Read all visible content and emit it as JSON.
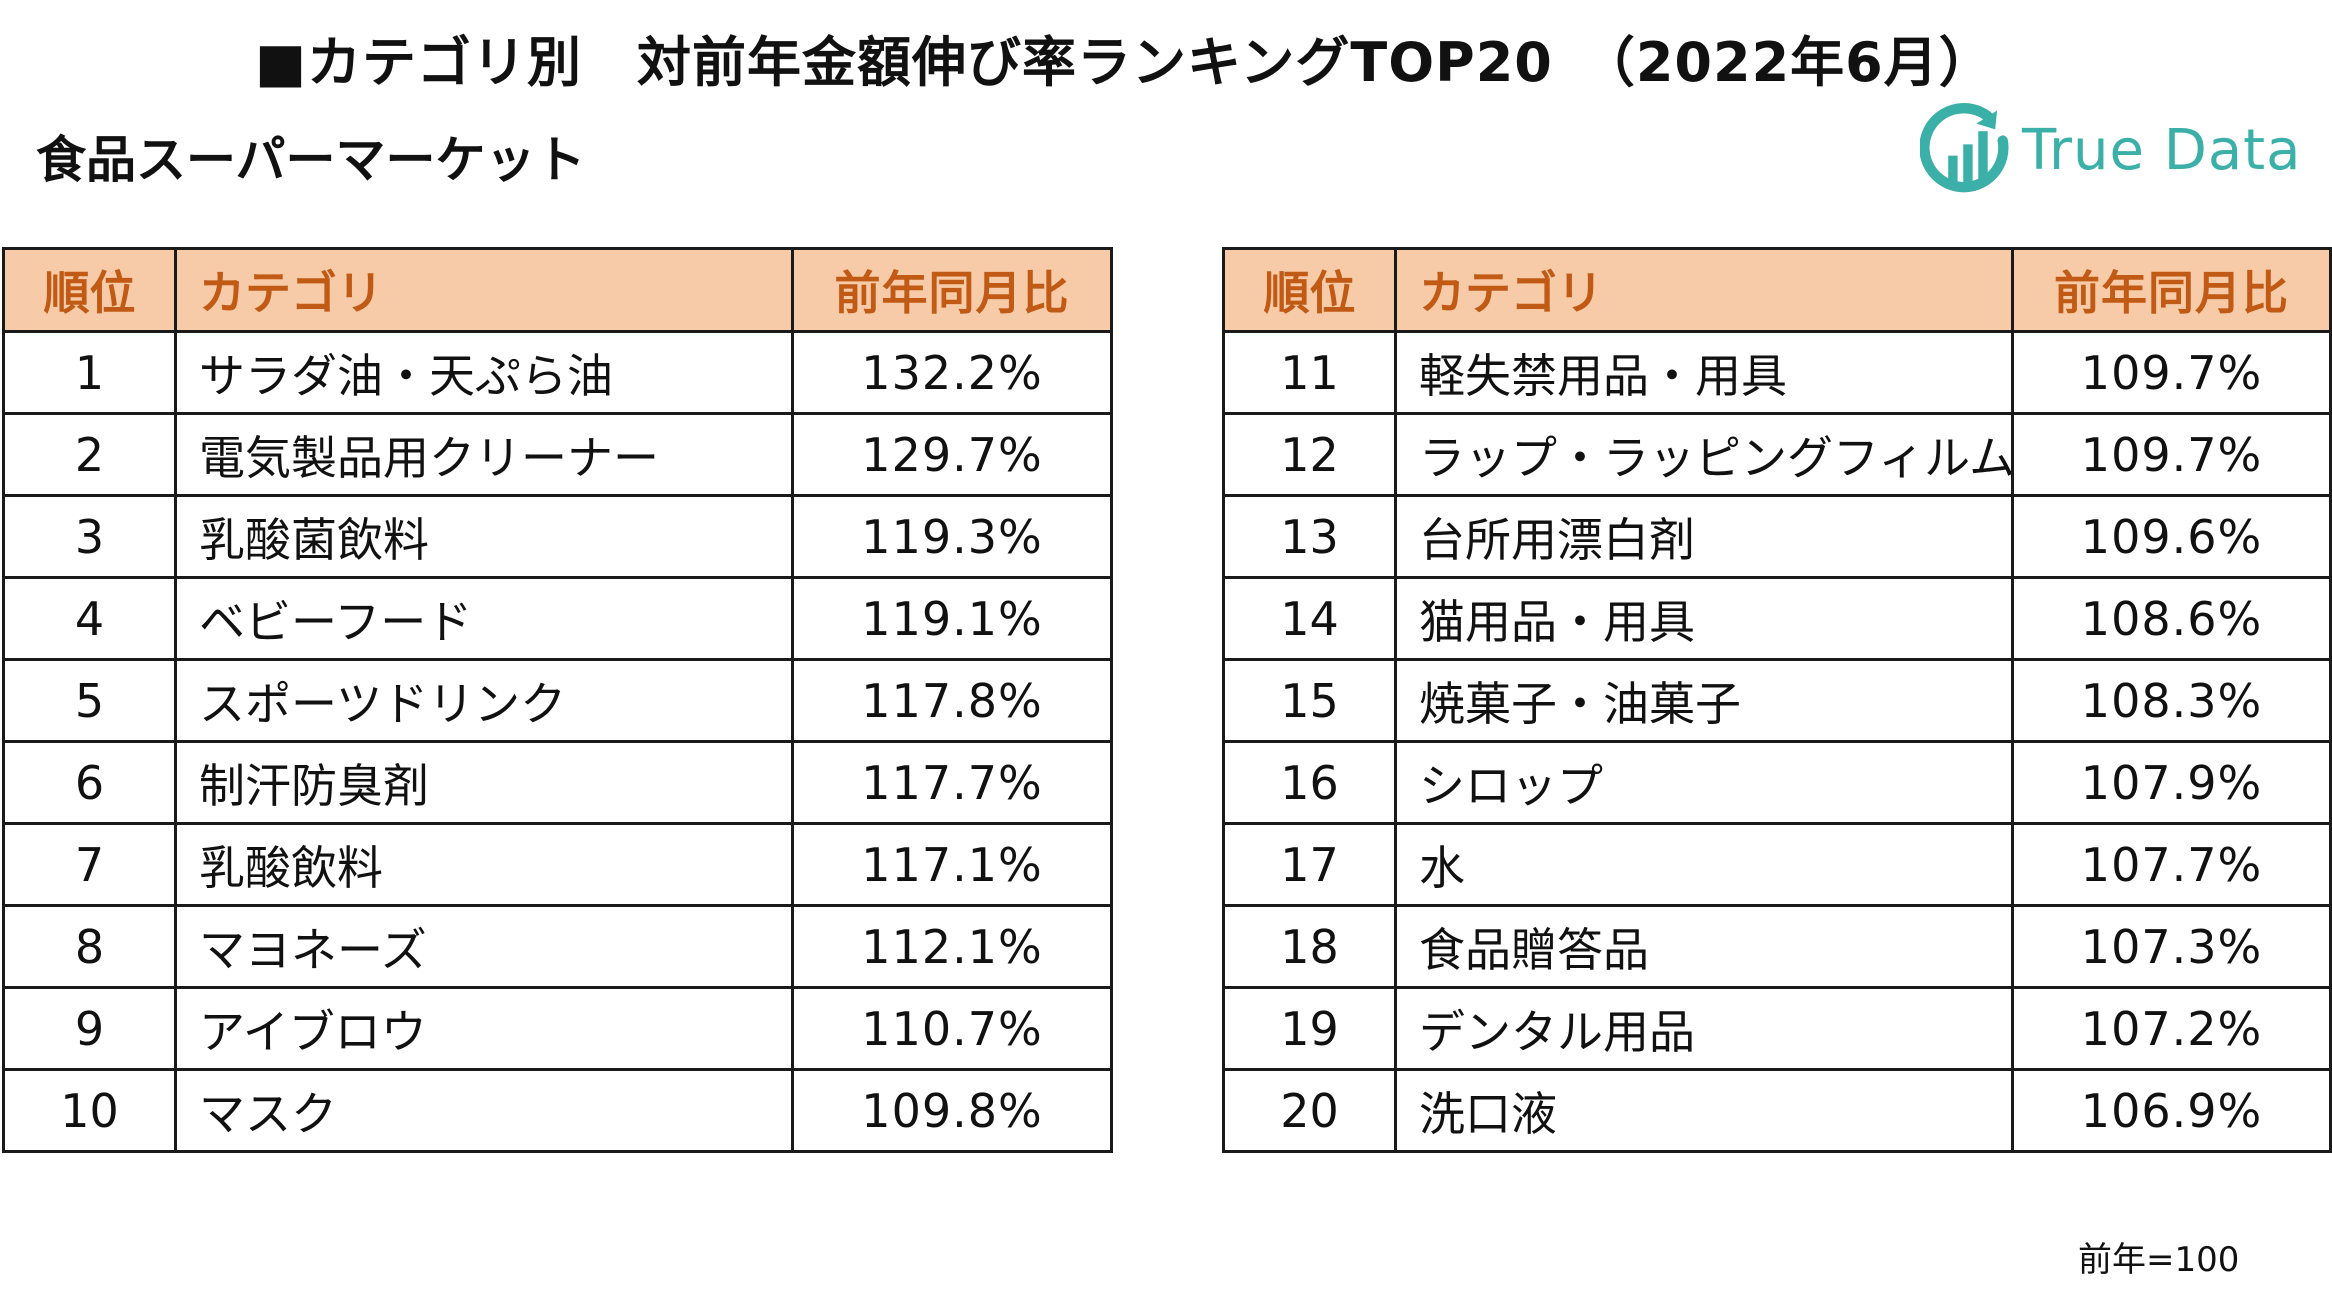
{
  "title": "■カテゴリ別　対前年金額伸び率ランキングTOP20　（2022年6月）",
  "subtitle": "食品スーパーマーケット",
  "logo": {
    "text": "True Data",
    "color": "#3ab0a8"
  },
  "headers": {
    "rank": "順位",
    "category": "カテゴリ",
    "ratio": "前年同月比"
  },
  "header_bg": "#f8cba8",
  "header_text_color": "#c05a14",
  "rows_left": [
    {
      "rank": "1",
      "category": "サラダ油・天ぷら油",
      "ratio": "132.2%"
    },
    {
      "rank": "2",
      "category": "電気製品用クリーナー",
      "ratio": "129.7%"
    },
    {
      "rank": "3",
      "category": "乳酸菌飲料",
      "ratio": "119.3%"
    },
    {
      "rank": "4",
      "category": "ベビーフード",
      "ratio": "119.1%"
    },
    {
      "rank": "5",
      "category": "スポーツドリンク",
      "ratio": "117.8%"
    },
    {
      "rank": "6",
      "category": "制汗防臭剤",
      "ratio": "117.7%"
    },
    {
      "rank": "7",
      "category": "乳酸飲料",
      "ratio": "117.1%"
    },
    {
      "rank": "8",
      "category": "マヨネーズ",
      "ratio": "112.1%"
    },
    {
      "rank": "9",
      "category": "アイブロウ",
      "ratio": "110.7%"
    },
    {
      "rank": "10",
      "category": "マスク",
      "ratio": "109.8%"
    }
  ],
  "rows_right": [
    {
      "rank": "11",
      "category": "軽失禁用品・用具",
      "ratio": "109.7%"
    },
    {
      "rank": "12",
      "category": "ラップ・ラッピングフィルム",
      "ratio": "109.7%"
    },
    {
      "rank": "13",
      "category": "台所用漂白剤",
      "ratio": "109.6%"
    },
    {
      "rank": "14",
      "category": "猫用品・用具",
      "ratio": "108.6%"
    },
    {
      "rank": "15",
      "category": "焼菓子・油菓子",
      "ratio": "108.3%"
    },
    {
      "rank": "16",
      "category": "シロップ",
      "ratio": "107.9%"
    },
    {
      "rank": "17",
      "category": "水",
      "ratio": "107.7%"
    },
    {
      "rank": "18",
      "category": "食品贈答品",
      "ratio": "107.3%"
    },
    {
      "rank": "19",
      "category": "デンタル用品",
      "ratio": "107.2%"
    },
    {
      "rank": "20",
      "category": "洗口液",
      "ratio": "106.9%"
    }
  ],
  "footnote": "前年=100"
}
